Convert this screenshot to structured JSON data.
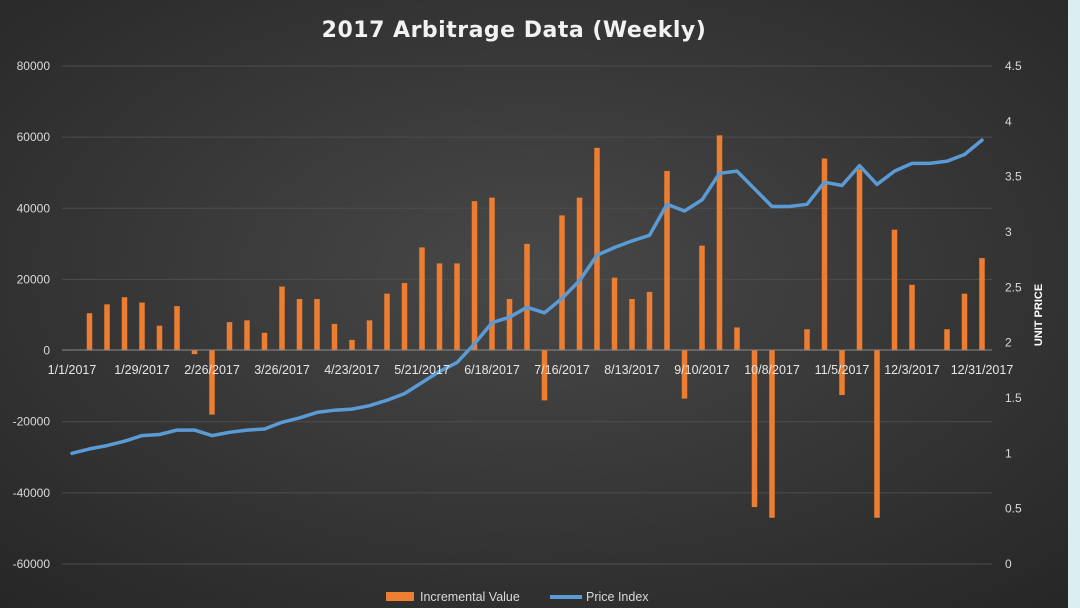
{
  "chart_data": {
    "type": "bar",
    "title": "2017 Arbitrage  Data (Weekly)",
    "xlabel": "",
    "ylabel": "",
    "ylabel_right": "UNIT PRICE",
    "ylim": [
      -60000,
      80000
    ],
    "ylim_right": [
      0,
      4.5
    ],
    "yticks": [
      "80000",
      "60000",
      "40000",
      "20000",
      "0",
      "-20000",
      "-40000",
      "-60000"
    ],
    "yticks_right": [
      "4.5",
      "4",
      "3.5",
      "3",
      "2.5",
      "2",
      "1.5",
      "1",
      "0.5",
      "0"
    ],
    "x_tick_labels": [
      "1/1/2017",
      "1/29/2017",
      "2/26/2017",
      "3/26/2017",
      "4/23/2017",
      "5/21/2017",
      "6/18/2017",
      "7/16/2017",
      "8/13/2017",
      "9/10/2017",
      "10/8/2017",
      "11/5/2017",
      "12/3/2017",
      "12/31/2017"
    ],
    "x_tick_every": 4,
    "legend_position": "bottom",
    "colors": {
      "bars": "#ed7d31",
      "line": "#5b9bd5",
      "background": "#3a3a3a"
    },
    "series": [
      {
        "name": "Incremental Value",
        "type": "bar",
        "axis": "left",
        "values": [
          0,
          10500,
          13000,
          15000,
          13500,
          7000,
          12500,
          -1000,
          -18000,
          8000,
          8500,
          5000,
          18000,
          14500,
          14500,
          7500,
          3000,
          8500,
          16000,
          19000,
          29000,
          24500,
          24500,
          42000,
          43000,
          14500,
          30000,
          -14000,
          38000,
          43000,
          57000,
          20500,
          14500,
          16500,
          50500,
          -13500,
          29500,
          60500,
          6500,
          -44000,
          -47000,
          0,
          6000,
          54000,
          -12500,
          51000,
          -47000,
          34000,
          18500,
          0,
          6000,
          16000,
          26000
        ]
      },
      {
        "name": "Price Index",
        "type": "line",
        "axis": "right",
        "values": [
          1,
          1.04,
          1.07,
          1.11,
          1.16,
          1.17,
          1.21,
          1.21,
          1.16,
          1.19,
          1.21,
          1.22,
          1.28,
          1.32,
          1.37,
          1.39,
          1.4,
          1.43,
          1.48,
          1.54,
          1.64,
          1.74,
          1.82,
          1.99,
          2.18,
          2.23,
          2.32,
          2.27,
          2.4,
          2.56,
          2.79,
          2.86,
          2.92,
          2.97,
          3.25,
          3.19,
          3.29,
          3.53,
          3.55,
          3.39,
          3.23,
          3.23,
          3.25,
          3.45,
          3.42,
          3.6,
          3.43,
          3.55,
          3.62,
          3.62,
          3.64,
          3.7,
          3.83
        ]
      }
    ]
  }
}
